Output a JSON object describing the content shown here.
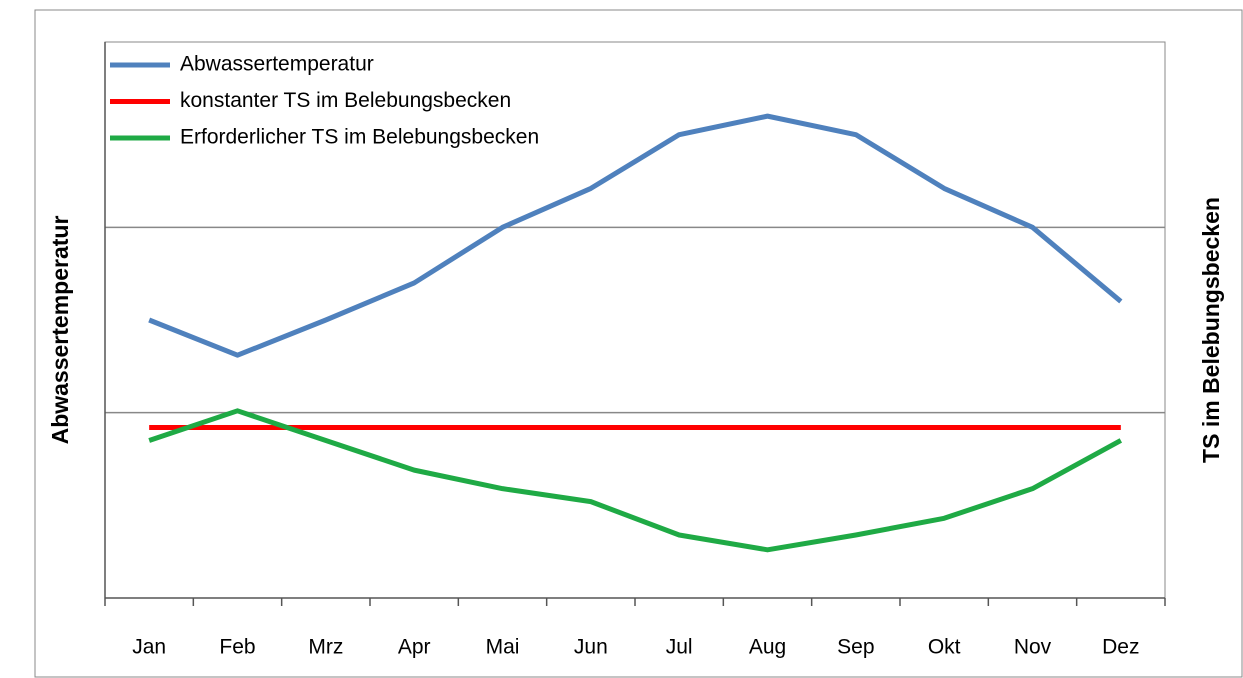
{
  "chart_data": {
    "type": "line",
    "categories": [
      "Jan",
      "Feb",
      "Mrz",
      "Apr",
      "Mai",
      "Jun",
      "Jul",
      "Aug",
      "Sep",
      "Okt",
      "Nov",
      "Dez"
    ],
    "ylabel": "Abwassertemperatur",
    "y2label": "TS im Belebungsbecken",
    "ylim": [
      0,
      3
    ],
    "yticks": [
      1,
      2
    ],
    "grid": true,
    "legend": "upper left",
    "series": [
      {
        "name": "Abwassertemperatur",
        "color": "#4f81bd",
        "values": [
          1.5,
          1.31,
          1.5,
          1.7,
          2.0,
          2.21,
          2.5,
          2.6,
          2.5,
          2.21,
          2.0,
          1.6
        ]
      },
      {
        "name": "konstanter TS  im Belebungsbecken",
        "color": "#ff0000",
        "values": [
          0.92,
          0.92,
          0.92,
          0.92,
          0.92,
          0.92,
          0.92,
          0.92,
          0.92,
          0.92,
          0.92,
          0.92
        ]
      },
      {
        "name": "Erforderlicher TS im Belebungsbecken",
        "color": "#1faa45",
        "values": [
          0.85,
          1.01,
          0.85,
          0.69,
          0.59,
          0.52,
          0.34,
          0.26,
          0.34,
          0.43,
          0.59,
          0.85
        ]
      }
    ]
  }
}
